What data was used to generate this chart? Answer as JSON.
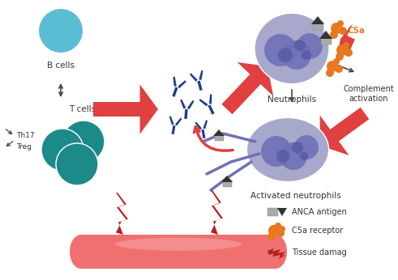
{
  "background_color": "#ffffff",
  "b_cell_color": "#5bbdd4",
  "t_cell_color": "#1d8a8a",
  "neutrophil_body_color": "#a8a8cc",
  "neutrophil_nucleus_color": "#7070b8",
  "neutrophil_dark_color": "#5555a0",
  "anca_color": "#1e3d8c",
  "activated_filament_color": "#7070b8",
  "blood_vessel_color": "#f07070",
  "blood_vessel_highlight": "#f8a8a8",
  "arrow_red_color": "#e04040",
  "arrow_black_color": "#444444",
  "c5a_color": "#e87820",
  "tissue_damage_color": "#b82020",
  "label_bcells": "B cells",
  "label_tcells": "T cells",
  "label_th17": "Th17",
  "label_treg": "Treg",
  "label_neutrophils": "Neutrophils",
  "label_c5a": "C5a",
  "label_complement": "Complement\nactivation",
  "label_activated": "Activated neutrophils",
  "label_anca_antigen": "ANCA antigen",
  "label_c5a_receptor": "C5a receptor",
  "label_tissue_damage": "Tissue damag",
  "font_size_labels": 7.5,
  "font_size_legend": 7.0
}
